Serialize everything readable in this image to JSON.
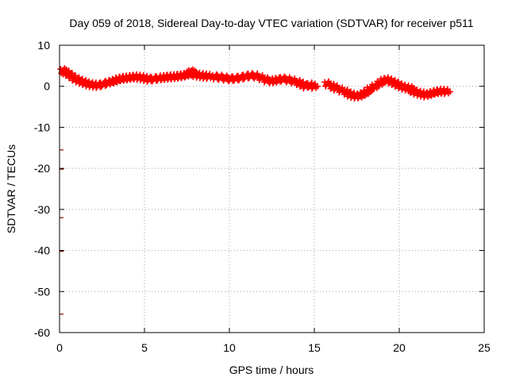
{
  "chart_data": {
    "type": "scatter",
    "title": "Day 059 of 2018, Sidereal Day-to-day VTEC variation (SDTVAR) for receiver p511",
    "xlabel": "GPS time / hours",
    "ylabel": "SDTVAR / TECUs",
    "xlim": [
      0,
      25
    ],
    "ylim": [
      -60,
      10
    ],
    "x_ticks": [
      0,
      5,
      10,
      15,
      20,
      25
    ],
    "x_tick_labels": [
      "0",
      "5",
      "10",
      "15",
      "20",
      "25"
    ],
    "y_ticks": [
      10,
      0,
      -10,
      -20,
      -30,
      -40,
      -50,
      -60
    ],
    "y_tick_labels": [
      "10",
      "0",
      "-10",
      "-20",
      "-30",
      "-40",
      "-50",
      "-60"
    ],
    "grid": true,
    "legend": "none",
    "series": [
      {
        "name": "SDTVAR",
        "color": "#ff0000",
        "marker": "plus",
        "x": [
          0.25,
          0.35,
          0.5,
          0.7,
          0.9,
          1.1,
          1.3,
          1.5,
          1.7,
          1.9,
          2.1,
          2.3,
          2.6,
          2.9,
          3.1,
          3.3,
          3.5,
          3.7,
          3.9,
          4.1,
          4.3,
          4.5,
          4.7,
          4.9,
          5.1,
          5.3,
          5.6,
          5.9,
          6.1,
          6.3,
          6.5,
          6.7,
          6.9,
          7.1,
          7.3,
          7.5,
          7.7,
          7.8,
          7.9,
          8.0,
          8.2,
          8.4,
          8.6,
          8.8,
          9.2,
          9.5,
          9.8,
          10.1,
          10.4,
          10.7,
          11.0,
          11.3,
          11.6,
          11.9,
          12.2,
          12.5,
          12.7,
          12.9,
          13.2,
          13.5,
          13.8,
          14.1,
          14.3,
          14.5,
          14.8,
          15.0,
          15.8,
          16.1,
          16.3,
          16.6,
          16.9,
          17.1,
          17.3,
          17.5,
          17.7,
          17.9,
          18.1,
          18.3,
          18.6,
          18.9,
          19.1,
          19.3,
          19.5,
          19.7,
          19.9,
          20.1,
          20.3,
          20.5,
          20.7,
          20.8,
          21.0,
          21.2,
          21.4,
          21.6,
          21.8,
          22.0,
          22.2,
          22.4,
          22.6,
          22.8
        ],
        "y": [
          3.8,
          3.5,
          3.2,
          2.6,
          2.0,
          1.6,
          1.2,
          0.9,
          0.6,
          0.4,
          0.3,
          0.2,
          0.5,
          0.9,
          1.1,
          1.4,
          1.7,
          1.9,
          2.0,
          2.1,
          2.2,
          2.3,
          2.2,
          2.1,
          1.9,
          1.7,
          1.8,
          2.0,
          2.1,
          2.2,
          2.3,
          2.3,
          2.4,
          2.5,
          2.6,
          2.8,
          3.2,
          3.5,
          3.2,
          2.9,
          2.7,
          2.6,
          2.5,
          2.4,
          2.3,
          2.2,
          2.0,
          1.8,
          1.9,
          2.1,
          2.4,
          2.6,
          2.5,
          2.1,
          1.6,
          1.3,
          1.4,
          1.6,
          1.8,
          1.6,
          1.3,
          0.9,
          0.5,
          0.1,
          0.3,
          0.0,
          0.6,
          0.0,
          -0.4,
          -0.9,
          -1.4,
          -1.9,
          -2.2,
          -2.4,
          -2.3,
          -1.9,
          -1.4,
          -0.7,
          0.0,
          0.8,
          1.4,
          1.6,
          1.3,
          0.9,
          0.5,
          0.1,
          -0.2,
          -0.4,
          -0.6,
          -1.0,
          -1.4,
          -1.7,
          -1.9,
          -2.1,
          -1.9,
          -1.6,
          -1.4,
          -1.2,
          -1.2,
          -1.3
        ]
      },
      {
        "name": "outliers at x=0",
        "color": "#8b0000",
        "marker": "dash",
        "x": [
          0,
          0,
          0,
          0,
          0
        ],
        "y": [
          -15.5,
          -20.2,
          -32.0,
          -40.2,
          -55.5
        ]
      }
    ]
  }
}
